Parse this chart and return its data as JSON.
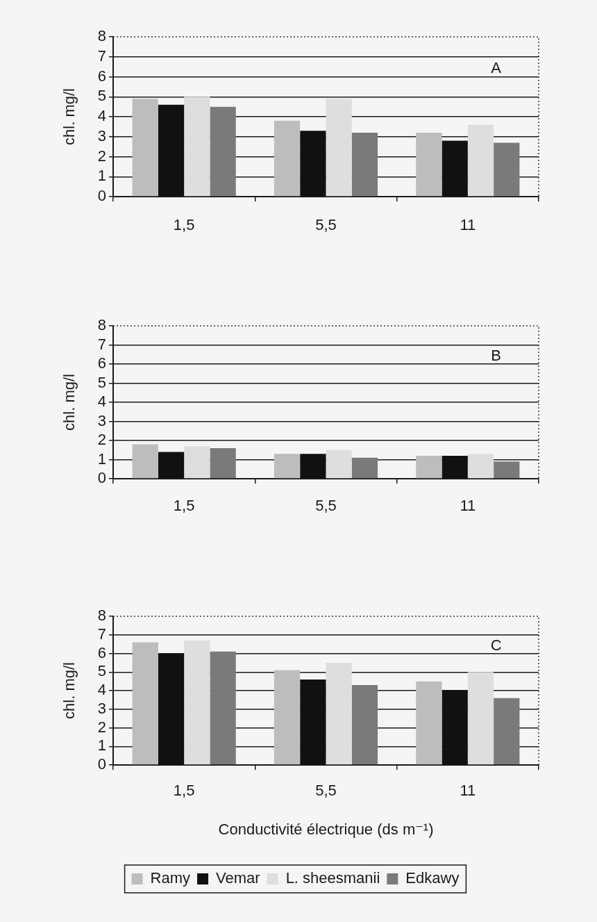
{
  "chart_data": [
    {
      "type": "bar",
      "categories": [
        "1,5",
        "5,5",
        "11"
      ],
      "ylabel": "chl. mg/l",
      "ylim": [
        0,
        8
      ],
      "yticks": [
        0,
        1,
        2,
        3,
        4,
        5,
        6,
        7,
        8
      ],
      "grid": "y",
      "annotations": [
        "A"
      ],
      "series": [
        {
          "color": "#bdbdbd",
          "values": [
            4.9,
            3.8,
            3.2
          ]
        },
        {
          "color": "#111111",
          "values": [
            4.6,
            3.3,
            2.8
          ]
        },
        {
          "color": "#dedede",
          "values": [
            5.0,
            4.9,
            3.6
          ]
        },
        {
          "color": "#7a7a7a",
          "values": [
            4.5,
            3.2,
            2.7
          ]
        }
      ]
    },
    {
      "type": "bar",
      "categories": [
        "1,5",
        "5,5",
        "11"
      ],
      "ylabel": "chl. mg/l",
      "ylim": [
        0,
        8
      ],
      "yticks": [
        0,
        1,
        2,
        3,
        4,
        5,
        6,
        7,
        8
      ],
      "grid": "y",
      "annotations": [
        "B"
      ],
      "series": [
        {
          "color": "#bdbdbd",
          "values": [
            1.8,
            1.3,
            1.2
          ]
        },
        {
          "color": "#111111",
          "values": [
            1.4,
            1.3,
            1.2
          ]
        },
        {
          "color": "#dedede",
          "values": [
            1.7,
            1.5,
            1.3
          ]
        },
        {
          "color": "#7a7a7a",
          "values": [
            1.6,
            1.1,
            0.9
          ]
        }
      ]
    },
    {
      "type": "bar",
      "categories": [
        "1,5",
        "5,5",
        "11"
      ],
      "xlabel": "Conductivité électrique (ds m⁻¹)",
      "ylabel": "chl. mg/l",
      "ylim": [
        0,
        8
      ],
      "yticks": [
        0,
        1,
        2,
        3,
        4,
        5,
        6,
        7,
        8
      ],
      "grid": "y",
      "annotations": [
        "C"
      ],
      "legend": "bottom",
      "series": [
        {
          "name": "Ramy",
          "color": "#bdbdbd",
          "values": [
            6.6,
            5.1,
            4.5
          ]
        },
        {
          "name": "Vemar",
          "color": "#111111",
          "values": [
            6.0,
            4.6,
            4.0
          ]
        },
        {
          "name": "L. sheesmanii",
          "color": "#dedede",
          "values": [
            6.7,
            5.5,
            5.0
          ]
        },
        {
          "name": "Edkawy",
          "color": "#7a7a7a",
          "values": [
            6.1,
            4.3,
            3.6
          ]
        }
      ]
    }
  ]
}
